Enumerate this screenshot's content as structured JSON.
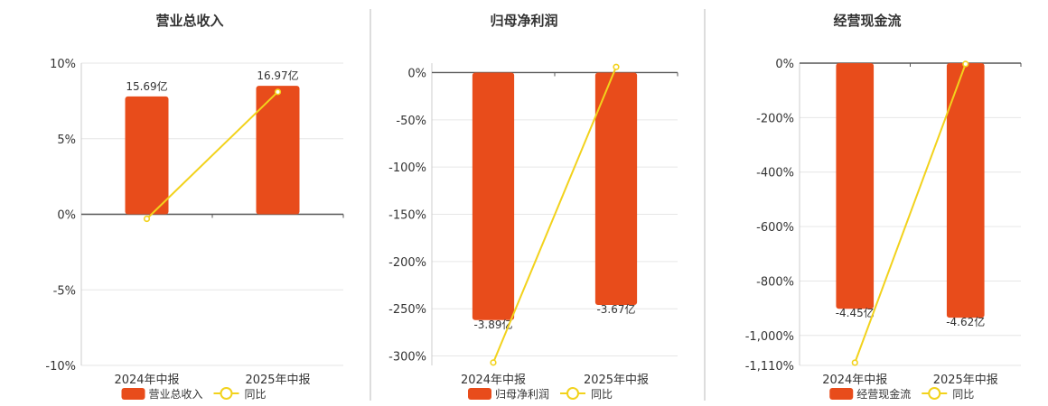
{
  "colors": {
    "bar": "#E84C1B",
    "line": "#F2D21C",
    "axis": "#555555",
    "grid": "#e6e6e6",
    "divider": "#bbbbbb"
  },
  "chart_data": [
    {
      "type": "bar+line",
      "title": "营业总收入",
      "categories": [
        "2024年中报",
        "2025年中报"
      ],
      "series": [
        {
          "name": "营业总收入",
          "type": "bar",
          "value_labels": [
            "15.69亿",
            "16.97亿"
          ],
          "bar_height_pct": [
            7.8,
            8.5
          ]
        },
        {
          "name": "同比",
          "type": "line",
          "values": [
            -0.3,
            8.1
          ]
        }
      ],
      "yticks": [
        "10%",
        "5%",
        "0%",
        "-5%",
        "-10%"
      ],
      "ytick_values": [
        10,
        5,
        0,
        -5,
        -10
      ],
      "ylim": [
        -10,
        10
      ]
    },
    {
      "type": "bar+line",
      "title": "归母净利润",
      "categories": [
        "2024年中报",
        "2025年中报"
      ],
      "series": [
        {
          "name": "归母净利润",
          "type": "bar",
          "value_labels": [
            "-3.89亿",
            "-3.67亿"
          ],
          "bar_height_pct": [
            -262,
            -246
          ]
        },
        {
          "name": "同比",
          "type": "line",
          "values": [
            -307,
            6
          ]
        }
      ],
      "yticks": [
        "0%",
        "-50%",
        "-100%",
        "-150%",
        "-200%",
        "-250%",
        "-300%"
      ],
      "ytick_values": [
        0,
        -50,
        -100,
        -150,
        -200,
        -250,
        -300
      ],
      "ylim": [
        -310,
        10
      ]
    },
    {
      "type": "bar+line",
      "title": "经营现金流",
      "categories": [
        "2024年中报",
        "2025年中报"
      ],
      "series": [
        {
          "name": "经营现金流",
          "type": "bar",
          "value_labels": [
            "-4.45亿",
            "-4.62亿"
          ],
          "bar_height_pct": [
            -902,
            -935
          ]
        },
        {
          "name": "同比",
          "type": "line",
          "values": [
            -1100,
            -3
          ]
        }
      ],
      "yticks": [
        "0%",
        "-200%",
        "-400%",
        "-600%",
        "-800%",
        "-1,000%",
        "-1,110%"
      ],
      "ytick_values": [
        0,
        -200,
        -400,
        -600,
        -800,
        -1000,
        -1110
      ],
      "ylim": [
        -1110,
        0
      ]
    }
  ]
}
